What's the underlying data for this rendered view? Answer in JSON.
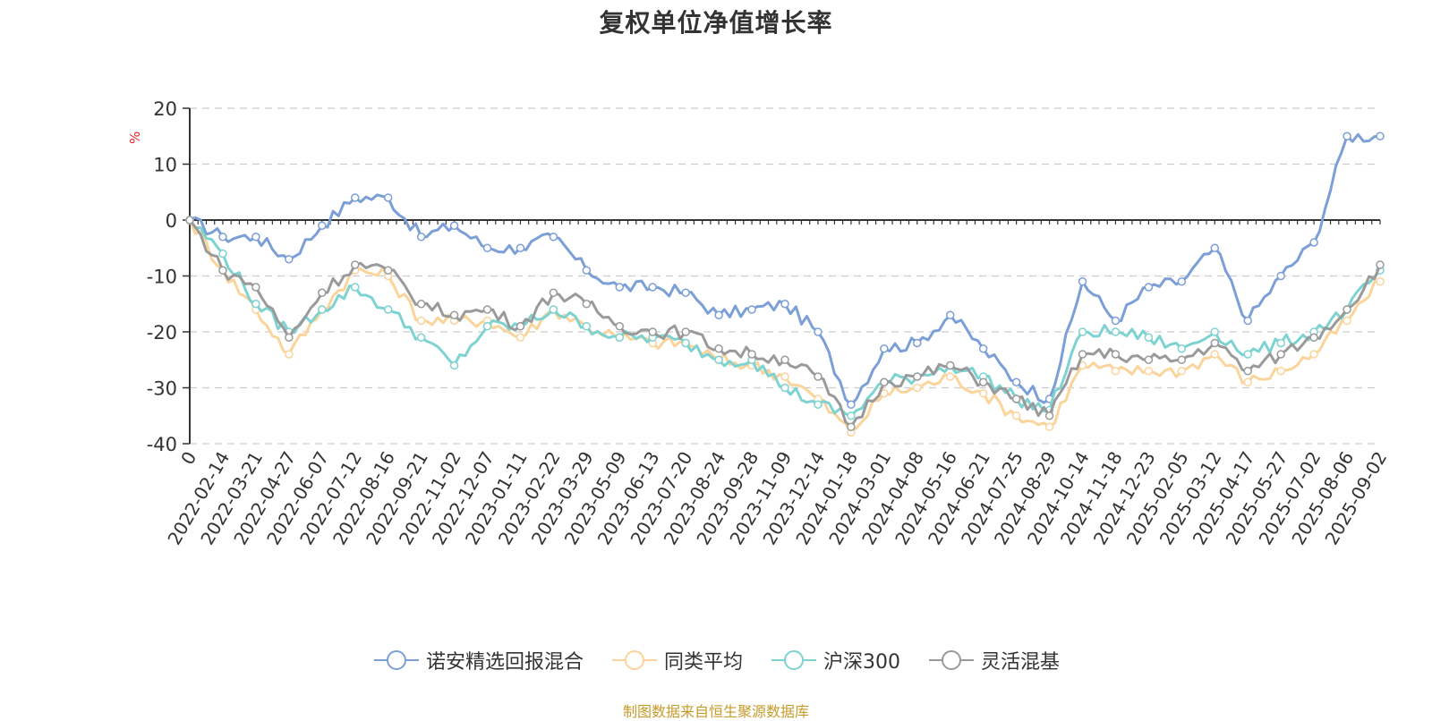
{
  "title": "复权单位净值增长率",
  "source_note": "制图数据来自恒生聚源数据库",
  "legend_items": [
    {
      "label": "诺安精选回报混合",
      "color": "#7b9fd6"
    },
    {
      "label": "同类平均",
      "color": "#fbd49b"
    },
    {
      "label": "沪深300",
      "color": "#7dd3d1"
    },
    {
      "label": "灵活混基",
      "color": "#9a9a9a"
    }
  ],
  "chart_data": {
    "type": "line",
    "title": "复权单位净值增长率",
    "ylabel": "%",
    "xlabel": "",
    "ylim": [
      -40,
      20
    ],
    "yticks": [
      20,
      10,
      0,
      -10,
      -20,
      -30,
      -40
    ],
    "grid": true,
    "legend_position": "bottom",
    "x_tick_labels": [
      "0",
      "2022-02-14",
      "2022-03-21",
      "2022-04-27",
      "2022-06-07",
      "2022-07-12",
      "2022-08-16",
      "2022-09-21",
      "2022-11-02",
      "2022-12-07",
      "2023-01-11",
      "2023-02-22",
      "2023-03-29",
      "2023-05-09",
      "2023-06-13",
      "2023-07-20",
      "2023-08-24",
      "2023-09-28",
      "2023-11-09",
      "2023-12-14",
      "2024-01-18",
      "2024-03-01",
      "2024-04-08",
      "2024-05-16",
      "2024-06-21",
      "2024-07-25",
      "2024-08-29",
      "2024-10-14",
      "2024-11-18",
      "2024-12-23",
      "2025-02-05",
      "2025-03-12",
      "2025-04-17",
      "2025-05-27",
      "2025-07-02",
      "2025-08-06",
      "2025-09-02"
    ],
    "series": [
      {
        "name": "诺安精选回报混合",
        "color": "#7b9fd6",
        "values": [
          0,
          -3,
          -3,
          -7,
          -1,
          4,
          4,
          -3,
          -1,
          -5,
          -5,
          -3,
          -9,
          -12,
          -12,
          -13,
          -17,
          -16,
          -15,
          -20,
          -33,
          -23,
          -22,
          -17,
          -23,
          -29,
          -32,
          -11,
          -18,
          -12,
          -11,
          -5,
          -18,
          -10,
          -4,
          15,
          15
        ]
      },
      {
        "name": "同类平均",
        "color": "#fbd49b",
        "values": [
          0,
          -9,
          -16,
          -24,
          -16,
          -9,
          -10,
          -18,
          -18,
          -18,
          -21,
          -16,
          -19,
          -21,
          -22,
          -22,
          -25,
          -26,
          -28,
          -32,
          -38,
          -31,
          -30,
          -28,
          -31,
          -35,
          -37,
          -26,
          -27,
          -27,
          -27,
          -24,
          -29,
          -27,
          -24,
          -18,
          -11
        ]
      },
      {
        "name": "沪深300",
        "color": "#7dd3d1",
        "values": [
          0,
          -6,
          -15,
          -20,
          -16,
          -12,
          -16,
          -21,
          -26,
          -19,
          -19,
          -16,
          -19,
          -21,
          -21,
          -22,
          -25,
          -25,
          -30,
          -33,
          -35,
          -29,
          -28,
          -26,
          -28,
          -32,
          -34,
          -20,
          -20,
          -21,
          -23,
          -20,
          -24,
          -22,
          -20,
          -16,
          -9
        ]
      },
      {
        "name": "灵活混基",
        "color": "#9a9a9a",
        "values": [
          0,
          -9,
          -12,
          -21,
          -13,
          -8,
          -9,
          -15,
          -17,
          -16,
          -19,
          -13,
          -15,
          -19,
          -20,
          -20,
          -23,
          -24,
          -25,
          -28,
          -37,
          -29,
          -28,
          -26,
          -29,
          -32,
          -35,
          -24,
          -24,
          -25,
          -25,
          -22,
          -27,
          -24,
          -21,
          -16,
          -8
        ]
      }
    ]
  }
}
